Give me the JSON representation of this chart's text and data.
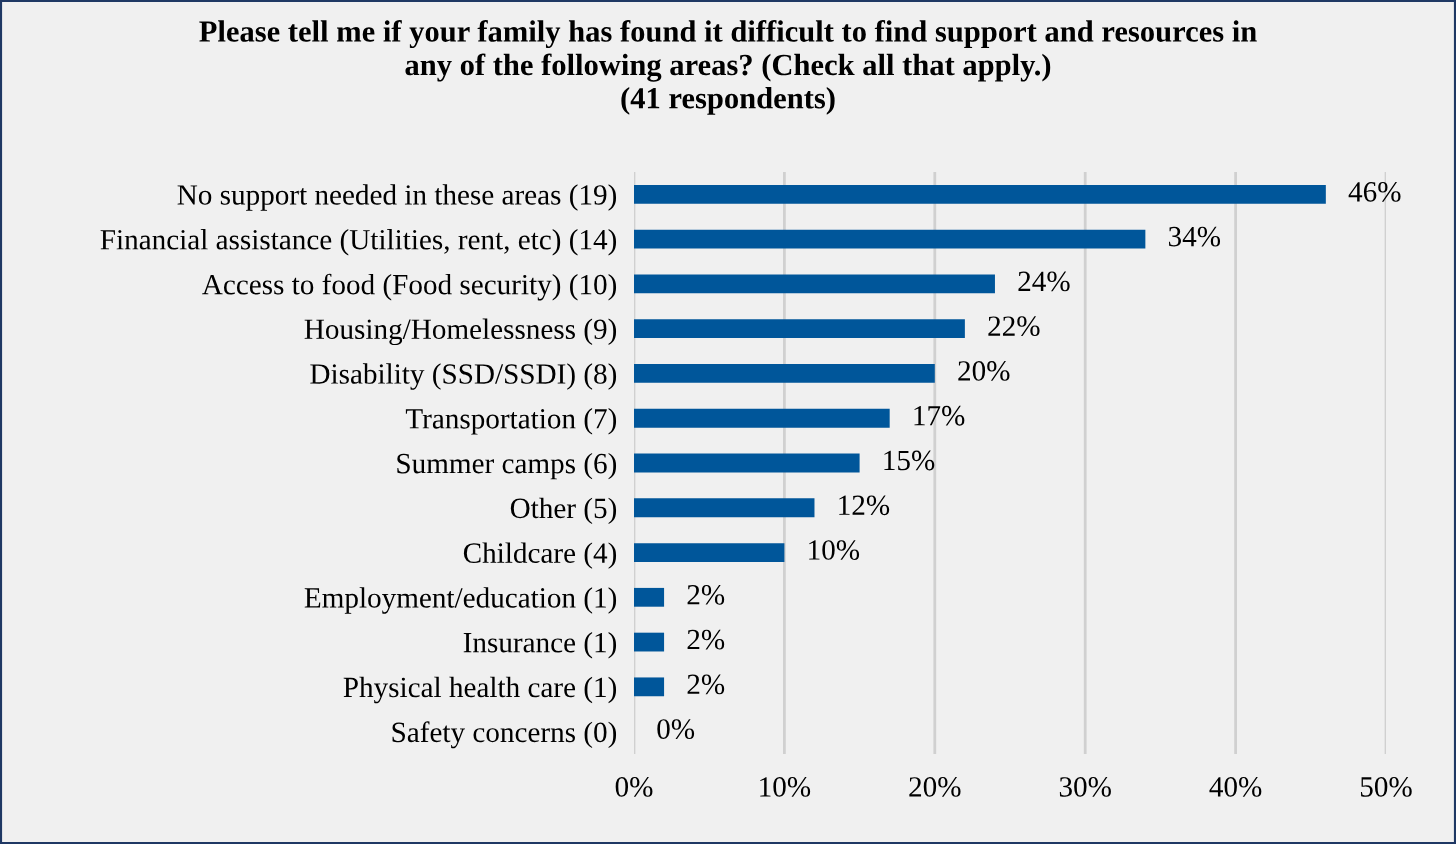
{
  "chart_data": {
    "type": "bar",
    "orientation": "horizontal",
    "title": "Please tell me if your family has found it difficult to find support and resources in\nany of the following areas? (Check all that apply.)\n(41 respondents)",
    "categories": [
      "No support needed in these areas (19)",
      "Financial assistance (Utilities, rent, etc) (14)",
      "Access to food (Food security) (10)",
      "Housing/Homelessness (9)",
      "Disability (SSD/SSDI) (8)",
      "Transportation (7)",
      "Summer camps (6)",
      "Other (5)",
      "Childcare (4)",
      "Employment/education (1)",
      "Insurance (1)",
      "Physical health care (1)",
      "Safety concerns (0)"
    ],
    "values": [
      46,
      34,
      24,
      22,
      20,
      17,
      15,
      12,
      10,
      2,
      2,
      2,
      0
    ],
    "value_labels": [
      "46%",
      "34%",
      "24%",
      "22%",
      "20%",
      "17%",
      "15%",
      "12%",
      "10%",
      "2%",
      "2%",
      "2%",
      "0%"
    ],
    "color": "#00569a",
    "xlim": [
      0,
      50
    ],
    "xticks": [
      {
        "value": 0,
        "label": "0%"
      },
      {
        "value": 10,
        "label": "10%"
      },
      {
        "value": 20,
        "label": "20%"
      },
      {
        "value": 30,
        "label": "30%"
      },
      {
        "value": 40,
        "label": "40%"
      },
      {
        "value": 50,
        "label": "50%"
      }
    ],
    "grid": "x"
  }
}
